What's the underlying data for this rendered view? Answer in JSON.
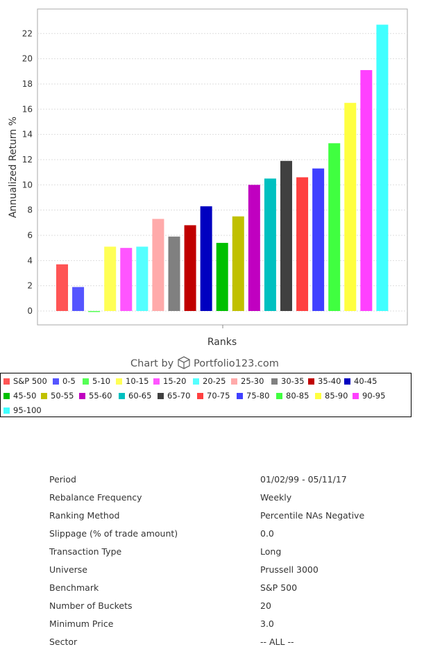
{
  "chart_data": {
    "type": "bar",
    "xlabel": "Ranks",
    "ylabel": "Annualized Return %",
    "ylim": [
      -1,
      23.5
    ],
    "yticks": [
      0,
      2,
      4,
      6,
      8,
      10,
      12,
      14,
      16,
      18,
      20,
      22
    ],
    "grid": true,
    "legend_position": "bottom",
    "categories": [
      "S&P 500",
      "0-5",
      "5-10",
      "10-15",
      "15-20",
      "20-25",
      "25-30",
      "30-35",
      "35-40",
      "40-45",
      "45-50",
      "50-55",
      "55-60",
      "60-65",
      "65-70",
      "70-75",
      "75-80",
      "80-85",
      "85-90",
      "90-95",
      "95-100"
    ],
    "values": [
      3.7,
      1.9,
      0.0,
      5.1,
      5.0,
      5.1,
      7.3,
      5.9,
      6.8,
      8.3,
      5.4,
      7.5,
      10.0,
      10.5,
      11.9,
      10.6,
      11.3,
      13.3,
      16.5,
      19.1,
      22.7
    ],
    "colors": [
      "#ff5555",
      "#5555ff",
      "#55ff55",
      "#ffff55",
      "#ff55ff",
      "#55ffff",
      "#ffaaaa",
      "#808080",
      "#c00000",
      "#0000c0",
      "#00c000",
      "#c0c000",
      "#c000c0",
      "#00c0c0",
      "#404040",
      "#ff4040",
      "#4040ff",
      "#40ff40",
      "#ffff40",
      "#ff40ff",
      "#40ffff"
    ]
  },
  "watermark": {
    "prefix": "Chart by",
    "brand": "Portfolio123.com",
    "icon": "cube-icon"
  },
  "info": [
    {
      "label": "Period",
      "value": "01/02/99 - 05/11/17"
    },
    {
      "label": "Rebalance Frequency",
      "value": "Weekly"
    },
    {
      "label": "Ranking Method",
      "value": "Percentile NAs Negative"
    },
    {
      "label": "Slippage (% of trade amount)",
      "value": "0.0"
    },
    {
      "label": "Transaction Type",
      "value": "Long"
    },
    {
      "label": "Universe",
      "value": "Prussell 3000"
    },
    {
      "label": "Benchmark",
      "value": "S&P 500"
    },
    {
      "label": "Number of Buckets",
      "value": "20"
    },
    {
      "label": "Minimum Price",
      "value": "3.0"
    },
    {
      "label": "Sector",
      "value": "-- ALL --"
    }
  ]
}
